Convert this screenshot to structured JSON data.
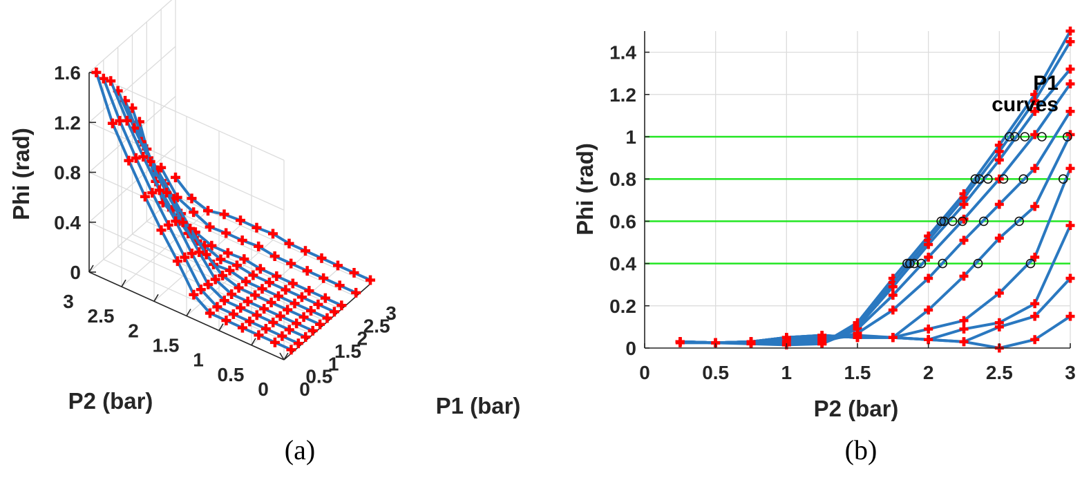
{
  "captions": {
    "a": "(a)",
    "b": "(b)"
  },
  "colors": {
    "line": "#2a78c0",
    "marker": "#ff0000",
    "threshold": "#22e622",
    "circle": "#111111",
    "grid": "#dcdcdc"
  },
  "chart_data": [
    {
      "type": "line",
      "projection": "3d",
      "xlabel": "P1 (bar)",
      "ylabel": "P2 (bar)",
      "zlabel": "Phi (rad)",
      "xlim": [
        0,
        3
      ],
      "ylim": [
        0,
        3
      ],
      "zlim": [
        0,
        1.6
      ],
      "xticks": [
        "0",
        "0.5",
        "1",
        "1.5",
        "2",
        "2.5",
        "3"
      ],
      "yticks": [
        "0",
        "0.5",
        "1",
        "1.5",
        "2",
        "2.5",
        "3"
      ],
      "zticks": [
        "0",
        "0.4",
        "0.8",
        "1.2",
        "1.6"
      ],
      "grid": true,
      "marker": "+",
      "p2": [
        0,
        0.25,
        0.5,
        0.75,
        1.0,
        1.25,
        1.5,
        1.75,
        2.0,
        2.25,
        2.5,
        2.75,
        3.0
      ],
      "series": [
        {
          "p1": 0.25,
          "values": [
            0.03,
            0.03,
            0.03,
            0.03,
            0.03,
            0.03,
            0.12,
            0.33,
            0.52,
            0.73,
            0.96,
            1.2,
            1.55
          ]
        },
        {
          "p1": 0.5,
          "values": [
            0.03,
            0.03,
            0.03,
            0.03,
            0.03,
            0.03,
            0.11,
            0.31,
            0.51,
            0.71,
            0.93,
            1.17,
            1.45
          ]
        },
        {
          "p1": 0.75,
          "values": [
            0.03,
            0.03,
            0.03,
            0.03,
            0.03,
            0.03,
            0.1,
            0.29,
            0.49,
            0.68,
            0.89,
            1.12,
            1.38
          ]
        },
        {
          "p1": 1.0,
          "values": [
            0.03,
            0.03,
            0.03,
            0.03,
            0.03,
            0.03,
            0.09,
            0.25,
            0.43,
            0.61,
            0.8,
            1.01,
            1.25
          ]
        },
        {
          "p1": 1.25,
          "values": [
            0.03,
            0.03,
            0.03,
            0.03,
            0.03,
            0.03,
            0.07,
            0.18,
            0.33,
            0.51,
            0.68,
            0.85,
            1.12
          ]
        },
        {
          "p1": 1.5,
          "values": [
            0.03,
            0.03,
            0.03,
            0.03,
            0.03,
            0.03,
            0.06,
            0.05,
            0.18,
            0.34,
            0.52,
            0.67,
            1.01
          ]
        },
        {
          "p1": 1.75,
          "values": [
            0.03,
            0.03,
            0.03,
            0.03,
            0.03,
            0.03,
            0.05,
            0.04,
            0.09,
            0.13,
            0.26,
            0.43,
            0.85
          ]
        },
        {
          "p1": 2.0,
          "values": [
            0.03,
            0.03,
            0.03,
            0.03,
            0.03,
            0.03,
            0.05,
            0.04,
            0.04,
            0.09,
            0.12,
            0.21,
            0.58
          ]
        },
        {
          "p1": 2.5,
          "values": [
            0.03,
            0.03,
            0.03,
            0.03,
            0.03,
            0.03,
            0.05,
            0.04,
            0.04,
            0.03,
            0.09,
            0.15,
            0.33
          ]
        },
        {
          "p1": 3.0,
          "values": [
            0.03,
            0.03,
            0.03,
            0.03,
            0.03,
            0.03,
            0.05,
            0.04,
            0.04,
            0.03,
            0.0,
            0.04,
            0.15
          ]
        }
      ]
    },
    {
      "type": "line",
      "xlabel": "P2 (bar)",
      "ylabel": "Phi (rad)",
      "xlim": [
        0,
        3
      ],
      "ylim": [
        0,
        1.5
      ],
      "xticks": [
        "0",
        "0.5",
        "1",
        "1.5",
        "2",
        "2.5",
        "3"
      ],
      "yticks": [
        "0",
        "0.2",
        "0.4",
        "0.6",
        "0.8",
        "1",
        "1.2",
        "1.4"
      ],
      "grid": true,
      "marker": "+",
      "annotation": [
        "P1",
        "curves"
      ],
      "thresholds": [
        0.4,
        0.6,
        0.8,
        1.0
      ],
      "x": [
        0.25,
        0.5,
        0.75,
        1.0,
        1.25,
        1.5,
        1.75,
        2.0,
        2.25,
        2.5,
        2.75,
        3.0
      ],
      "series": [
        {
          "values": [
            0.025,
            0.025,
            0.02,
            0.015,
            0.02,
            0.12,
            0.33,
            0.53,
            0.73,
            0.96,
            1.2,
            1.5
          ]
        },
        {
          "values": [
            0.03,
            0.025,
            0.025,
            0.02,
            0.02,
            0.11,
            0.31,
            0.51,
            0.71,
            0.93,
            1.17,
            1.45
          ]
        },
        {
          "values": [
            0.03,
            0.025,
            0.025,
            0.03,
            0.02,
            0.1,
            0.29,
            0.49,
            0.68,
            0.89,
            1.12,
            1.32
          ]
        },
        {
          "values": [
            0.03,
            0.025,
            0.03,
            0.035,
            0.02,
            0.09,
            0.25,
            0.43,
            0.61,
            0.8,
            1.01,
            1.25
          ]
        },
        {
          "values": [
            0.03,
            0.025,
            0.03,
            0.04,
            0.03,
            0.07,
            0.18,
            0.33,
            0.51,
            0.68,
            0.85,
            1.12
          ]
        },
        {
          "values": [
            0.03,
            0.025,
            0.03,
            0.045,
            0.04,
            0.06,
            0.05,
            0.18,
            0.34,
            0.52,
            0.67,
            1.01
          ]
        },
        {
          "values": [
            0.03,
            0.025,
            0.03,
            0.05,
            0.05,
            0.055,
            0.05,
            0.09,
            0.13,
            0.26,
            0.43,
            0.85
          ]
        },
        {
          "values": [
            0.03,
            0.025,
            0.03,
            0.05,
            0.06,
            0.05,
            0.05,
            0.04,
            0.09,
            0.12,
            0.21,
            0.58
          ]
        },
        {
          "values": [
            0.03,
            0.025,
            0.03,
            0.05,
            0.06,
            0.05,
            0.05,
            0.04,
            0.03,
            0.1,
            0.15,
            0.33
          ]
        },
        {
          "values": [
            0.03,
            0.025,
            0.03,
            0.05,
            0.06,
            0.05,
            0.05,
            0.04,
            0.03,
            0.0,
            0.04,
            0.15
          ]
        }
      ],
      "crossings": [
        {
          "phi": 0.4,
          "x": [
            1.85,
            1.87,
            1.9,
            1.95,
            2.1,
            2.35,
            2.72
          ]
        },
        {
          "phi": 0.6,
          "x": [
            2.09,
            2.11,
            2.17,
            2.24,
            2.39,
            2.64
          ]
        },
        {
          "phi": 0.8,
          "x": [
            2.33,
            2.36,
            2.42,
            2.53,
            2.67,
            2.95
          ]
        },
        {
          "phi": 1.0,
          "x": [
            2.57,
            2.61,
            2.68,
            2.8,
            2.98
          ]
        }
      ]
    }
  ]
}
